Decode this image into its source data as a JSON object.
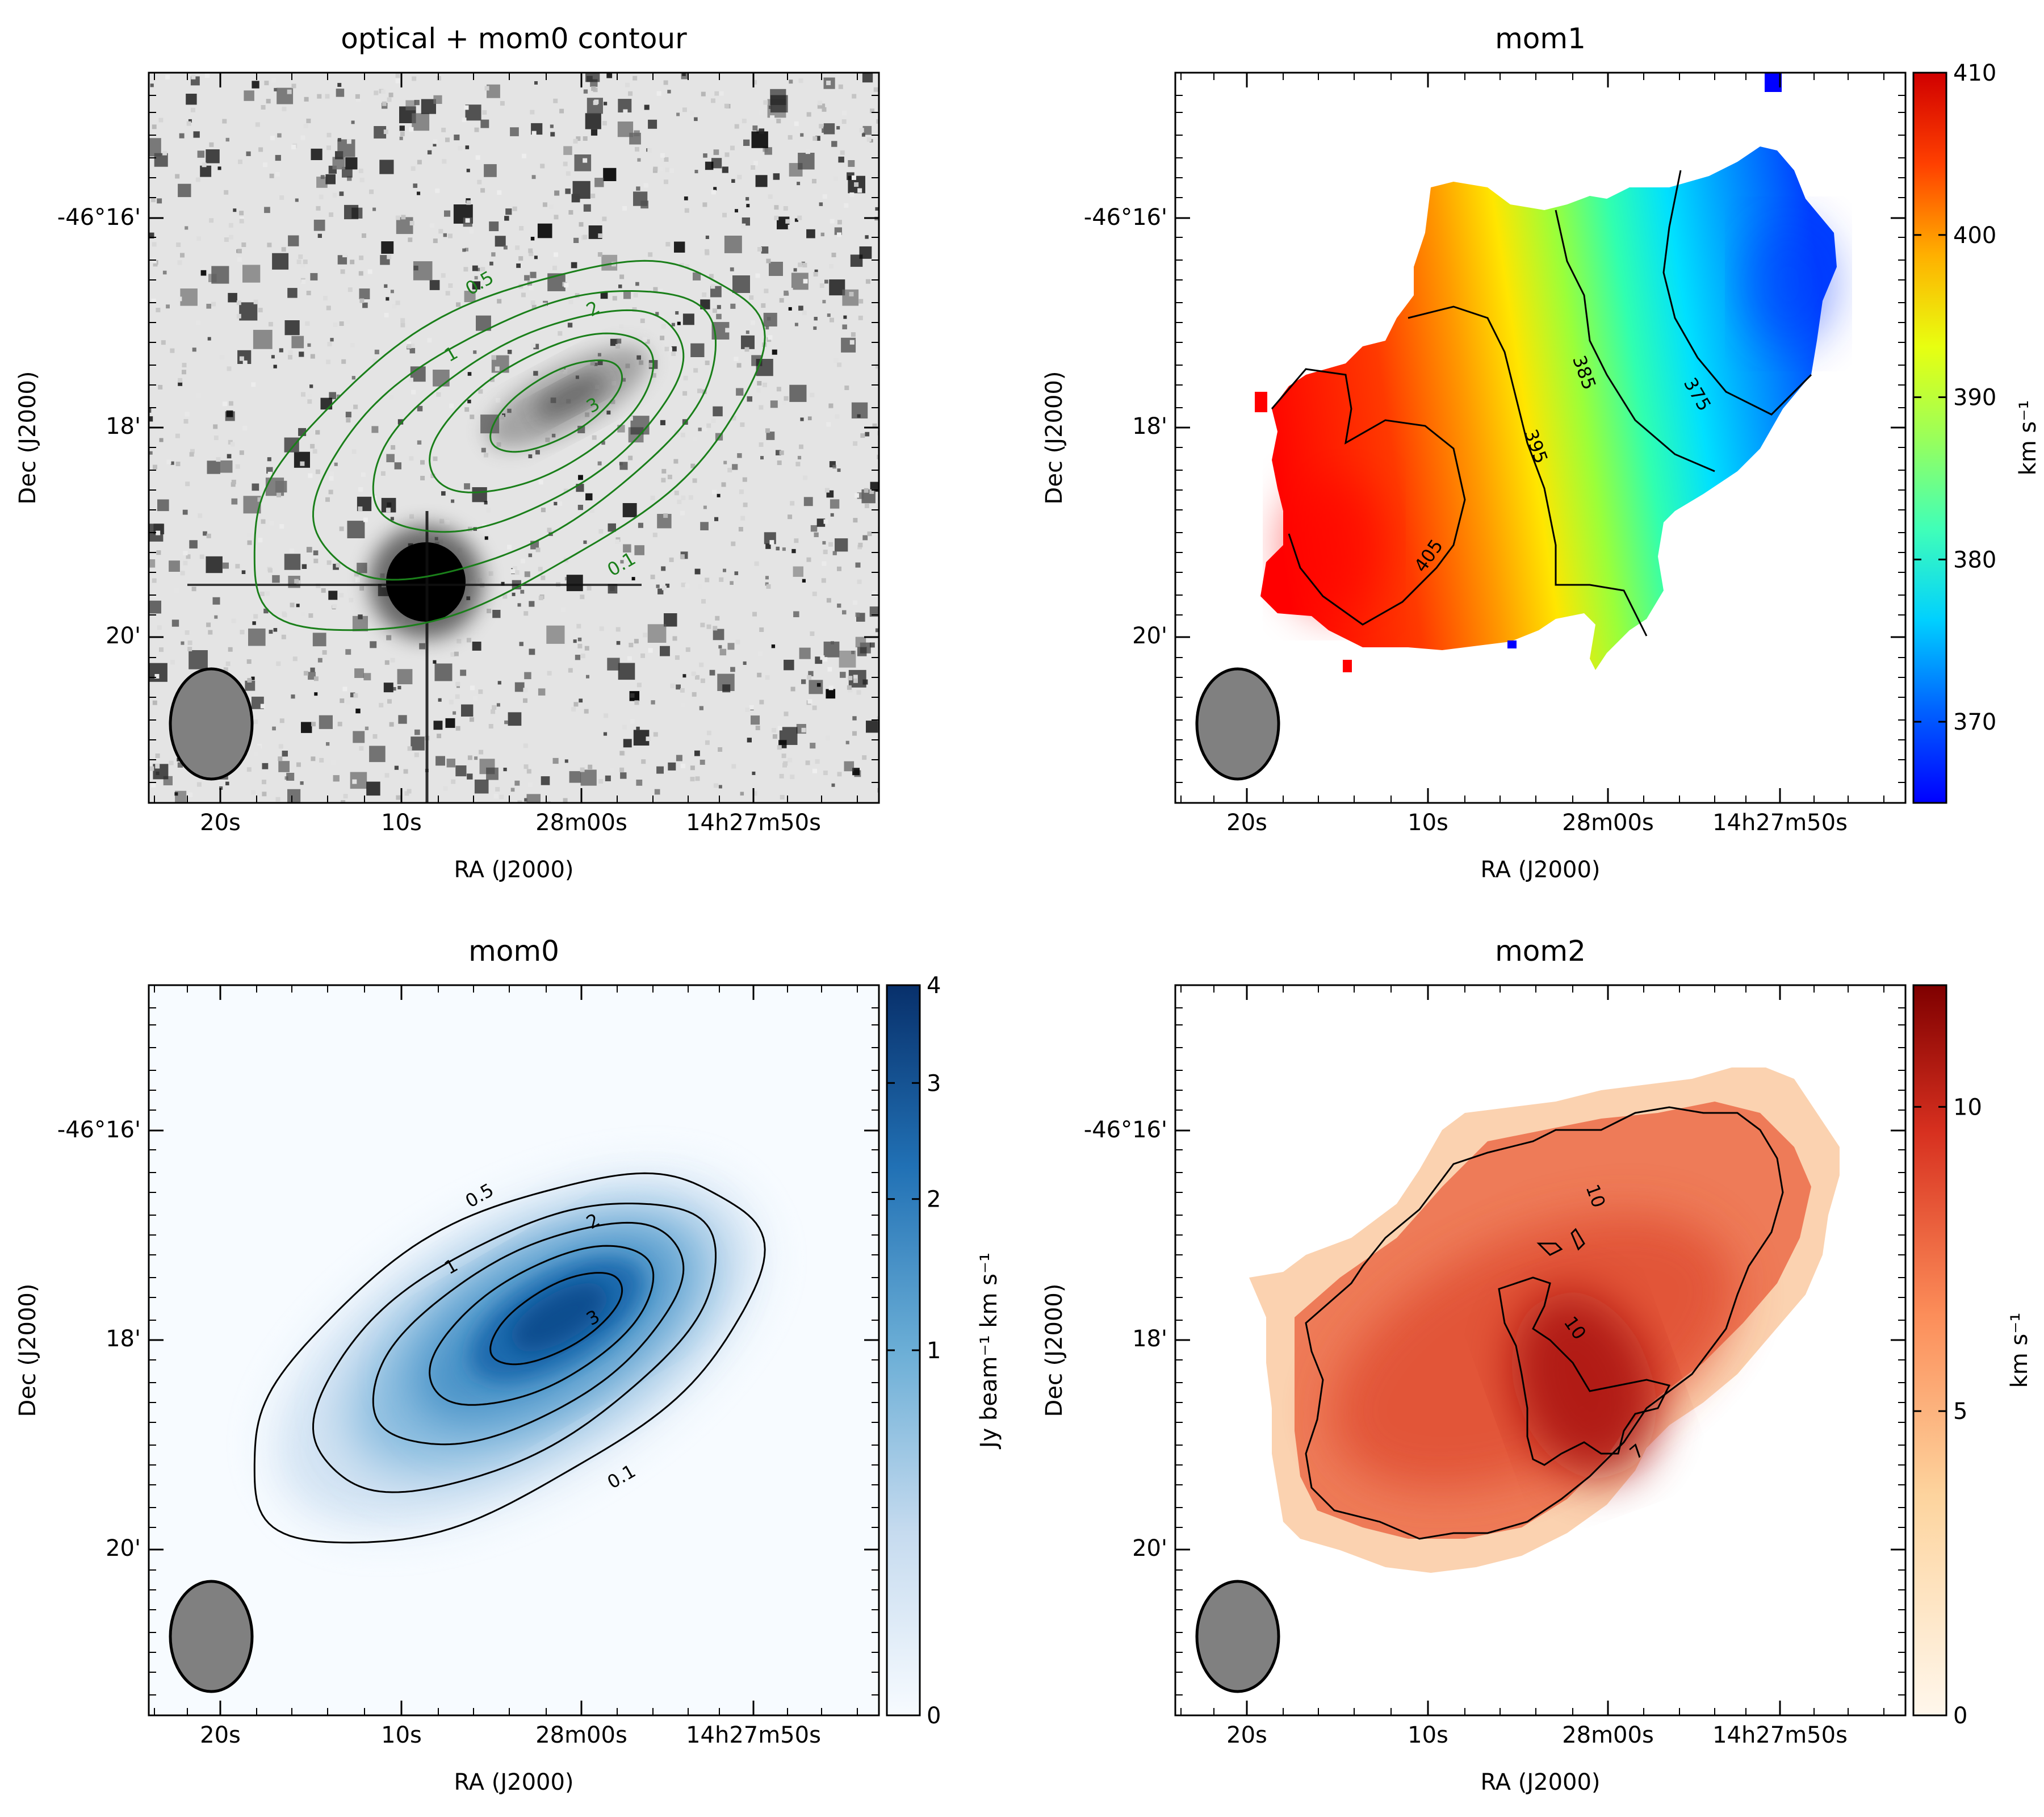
{
  "figure": {
    "beam_shape": "ellipse",
    "beam_color": "#808080"
  },
  "chart_data": [
    {
      "id": "optical",
      "type": "heatmap",
      "title": "optical + mom0 contour",
      "xlabel": "RA (J2000)",
      "ylabel": "Dec (J2000)",
      "xticks": [
        "20s",
        "10s",
        "28m00s",
        "14h27m50s"
      ],
      "yticks": [
        "-46°16'",
        "18'",
        "20'"
      ],
      "background": "optical (DSS) greyscale star field",
      "contour_color": "#1a7f1a",
      "contour_levels": [
        0.1,
        0.5,
        1,
        2,
        3
      ],
      "contour_labels": [
        "0.5",
        "2",
        "1",
        "3",
        "0.1"
      ],
      "colorbar": null
    },
    {
      "id": "mom1",
      "type": "heatmap",
      "title": "mom1",
      "xlabel": "RA (J2000)",
      "ylabel": "Dec (J2000)",
      "xticks": [
        "20s",
        "10s",
        "28m00s",
        "14h27m50s"
      ],
      "yticks": [
        "-46°16'",
        "18'",
        "20'"
      ],
      "colormap": "jet",
      "contour_color": "#000000",
      "contour_levels": [
        375,
        385,
        395,
        405
      ],
      "contour_labels": [
        "385",
        "375",
        "395",
        "405"
      ],
      "colorbar": {
        "label": "km s⁻¹",
        "range": [
          365,
          410
        ],
        "ticks": [
          "410",
          "400",
          "390",
          "380",
          "370"
        ],
        "tick_values": [
          410,
          400,
          390,
          380,
          370
        ],
        "colors": [
          "#00007f",
          "#0000ff",
          "#00a0ff",
          "#00ffff",
          "#7fff7f",
          "#ffff00",
          "#ff8000",
          "#ff0000",
          "#7f0000"
        ]
      }
    },
    {
      "id": "mom0",
      "type": "heatmap",
      "title": "mom0",
      "xlabel": "RA (J2000)",
      "ylabel": "Dec (J2000)",
      "xticks": [
        "20s",
        "10s",
        "28m00s",
        "14h27m50s"
      ],
      "yticks": [
        "-46°16'",
        "18'",
        "20'"
      ],
      "colormap": "Blues",
      "contour_color": "#000000",
      "contour_levels": [
        0.1,
        0.5,
        1,
        2,
        3
      ],
      "contour_labels": [
        "0.5",
        "2",
        "1",
        "3",
        "0.1"
      ],
      "colorbar": {
        "label": "Jy beam⁻¹ km s⁻¹",
        "range": [
          0,
          4
        ],
        "ticks": [
          "4",
          "3",
          "2",
          "1",
          "0"
        ],
        "tick_values": [
          4,
          3,
          2,
          1,
          0
        ],
        "scale": "sqrt",
        "colors": [
          "#f7fbff",
          "#c6dbef",
          "#6baed6",
          "#2171b5",
          "#08306b"
        ]
      }
    },
    {
      "id": "mom2",
      "type": "heatmap",
      "title": "mom2",
      "xlabel": "RA (J2000)",
      "ylabel": "Dec (J2000)",
      "xticks": [
        "20s",
        "10s",
        "28m00s",
        "14h27m50s"
      ],
      "yticks": [
        "-46°16'",
        "18'",
        "20'"
      ],
      "colormap": "OrRd",
      "contour_color": "#000000",
      "contour_levels": [
        7,
        10
      ],
      "contour_labels": [
        "10",
        "10",
        "7"
      ],
      "colorbar": {
        "label": "km s⁻¹",
        "range": [
          0,
          12
        ],
        "ticks": [
          "10",
          "5",
          "0"
        ],
        "tick_values": [
          10,
          5,
          0
        ],
        "colors": [
          "#fff7ec",
          "#fdd49e",
          "#fc8d59",
          "#d7301f",
          "#7f0000"
        ]
      }
    }
  ]
}
